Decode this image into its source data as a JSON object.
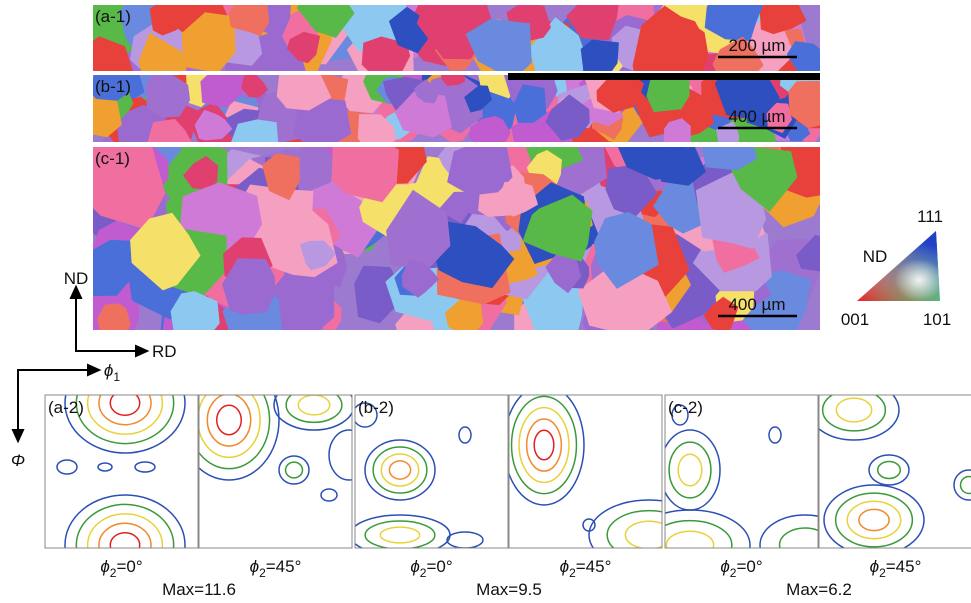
{
  "maps": [
    {
      "label": "(a-1)",
      "scale_bar": "200 µm"
    },
    {
      "label": "(b-1)",
      "scale_bar": "400 µm"
    },
    {
      "label": "(c-1)",
      "scale_bar": "400 µm"
    }
  ],
  "ipf_legend": {
    "axis": "ND",
    "top": "111",
    "left": "001",
    "right": "101"
  },
  "sample_axes": {
    "nd": "ND",
    "rd": "RD",
    "phi1": {
      "symbol": "ϕ",
      "subscript": "1"
    },
    "Phi": "Φ"
  },
  "odf_panels": [
    {
      "label": "(a-2)",
      "sections": [
        {
          "symbol": "ϕ",
          "subscript": "2",
          "rest": "=0°"
        },
        {
          "symbol": "ϕ",
          "subscript": "2",
          "rest": "=45°"
        }
      ],
      "max": "Max=11.6"
    },
    {
      "label": "(b-2)",
      "sections": [
        {
          "symbol": "ϕ",
          "subscript": "2",
          "rest": "=0°"
        },
        {
          "symbol": "ϕ",
          "subscript": "2",
          "rest": "=45°"
        }
      ],
      "max": "Max=9.5"
    },
    {
      "label": "(c-2)",
      "sections": [
        {
          "symbol": "ϕ",
          "subscript": "2",
          "rest": "=0°"
        },
        {
          "symbol": "ϕ",
          "subscript": "2",
          "rest": "=45°"
        }
      ],
      "max": "Max=6.2"
    }
  ]
}
